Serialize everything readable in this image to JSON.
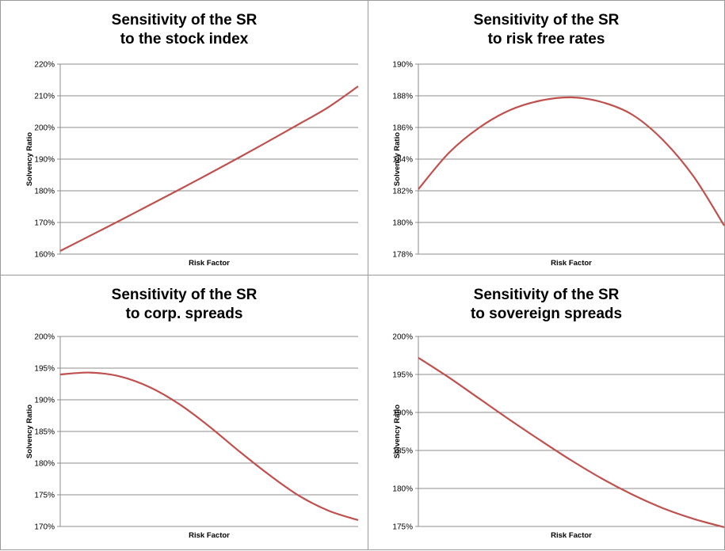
{
  "colors": {
    "line": "#c0504d",
    "grid": "#8c8c8c",
    "axis": "#8c8c8c"
  },
  "chart_data": [
    {
      "type": "line",
      "title_lines": [
        "Sensitivity of the SR",
        "to the stock index"
      ],
      "xlabel": "Risk Factor",
      "ylabel": "Solvency Ratio",
      "ylim": [
        160,
        220
      ],
      "yticks": [
        "160%",
        "170%",
        "180%",
        "190%",
        "200%",
        "210%",
        "220%"
      ],
      "grid": true,
      "series": [
        {
          "x": [
            0,
            0.1,
            0.2,
            0.3,
            0.4,
            0.5,
            0.6,
            0.7,
            0.8,
            0.9,
            1.0
          ],
          "y": [
            161,
            165.8,
            170.6,
            175.5,
            180.4,
            185.4,
            190.5,
            195.7,
            201.0,
            206.4,
            213.0
          ]
        }
      ]
    },
    {
      "type": "line",
      "title_lines": [
        "Sensitivity of the SR",
        "to risk free rates"
      ],
      "xlabel": "Risk Factor",
      "ylabel": "Solvency Ratio",
      "ylim": [
        178,
        190
      ],
      "yticks": [
        "178%",
        "180%",
        "182%",
        "184%",
        "186%",
        "188%",
        "190%"
      ],
      "grid": true,
      "series": [
        {
          "x": [
            0,
            0.1,
            0.2,
            0.3,
            0.4,
            0.5,
            0.6,
            0.7,
            0.8,
            0.9,
            1.0
          ],
          "y": [
            182.1,
            184.4,
            186.0,
            187.1,
            187.7,
            187.9,
            187.6,
            186.8,
            185.2,
            182.9,
            179.8
          ]
        }
      ]
    },
    {
      "type": "line",
      "title_lines": [
        "Sensitivity of the SR",
        "to corp. spreads"
      ],
      "xlabel": "Risk Factor",
      "ylabel": "Solvency Ratio",
      "ylim": [
        170,
        200
      ],
      "yticks": [
        "170%",
        "175%",
        "180%",
        "185%",
        "190%",
        "195%",
        "200%"
      ],
      "grid": true,
      "series": [
        {
          "x": [
            0,
            0.1,
            0.2,
            0.3,
            0.4,
            0.5,
            0.6,
            0.7,
            0.8,
            0.9,
            1.0
          ],
          "y": [
            194.0,
            194.3,
            193.7,
            192.0,
            189.3,
            185.8,
            181.9,
            178.2,
            174.9,
            172.5,
            171.0
          ]
        }
      ]
    },
    {
      "type": "line",
      "title_lines": [
        "Sensitivity of the SR",
        "to sovereign spreads"
      ],
      "xlabel": "Risk Factor",
      "ylabel": "Solvency Ratio",
      "ylim": [
        175,
        200
      ],
      "yticks": [
        "175%",
        "180%",
        "185%",
        "190%",
        "195%",
        "200%"
      ],
      "grid": true,
      "series": [
        {
          "x": [
            0,
            0.1,
            0.2,
            0.3,
            0.4,
            0.5,
            0.6,
            0.7,
            0.8,
            0.9,
            1.0
          ],
          "y": [
            197.2,
            194.6,
            191.8,
            189.0,
            186.3,
            183.7,
            181.3,
            179.2,
            177.4,
            176.0,
            174.9
          ]
        }
      ]
    }
  ]
}
